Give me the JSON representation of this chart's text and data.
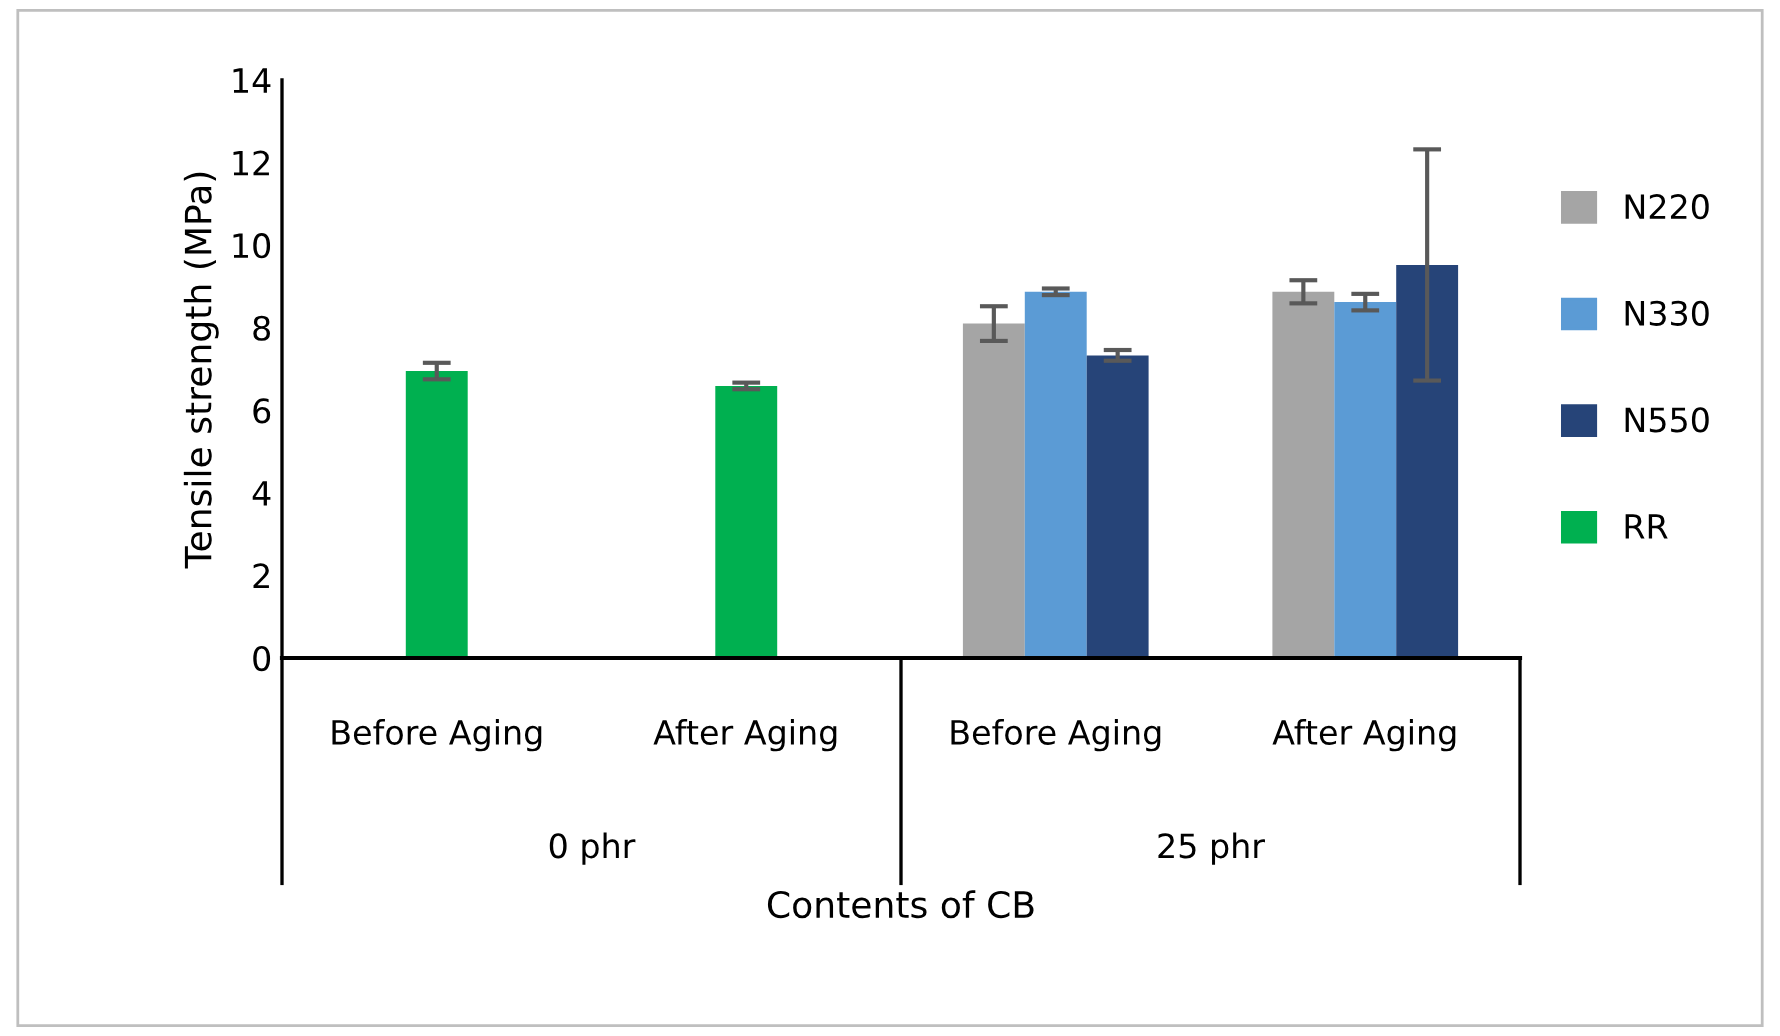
{
  "chart_data": {
    "type": "bar",
    "categories": [
      "Before Aging",
      "After Aging",
      "Before Aging",
      "After Aging"
    ],
    "series": [
      {
        "name": "N220",
        "color": "#a5a5a5",
        "values": [
          null,
          null,
          8.1,
          8.87
        ],
        "errors": [
          null,
          null,
          0.42,
          0.28
        ]
      },
      {
        "name": "N330",
        "color": "#5b9bd5",
        "values": [
          null,
          null,
          8.87,
          8.62
        ],
        "errors": [
          null,
          null,
          0.08,
          0.2
        ]
      },
      {
        "name": "N550",
        "color": "#264478",
        "values": [
          null,
          null,
          7.33,
          9.52
        ],
        "errors": [
          null,
          null,
          0.13,
          2.8
        ]
      },
      {
        "name": "RR",
        "color": "#00b050",
        "values": [
          6.95,
          6.59,
          null,
          null
        ],
        "errors": [
          0.2,
          0.08,
          null,
          null
        ]
      }
    ],
    "annotations": [
      "0 phr",
      "25 phr"
    ],
    "xlabel": "Contents of CB",
    "ylabel": "Tensile strength (MPa)",
    "ylim": [
      0,
      14
    ],
    "yticks": [
      0,
      2,
      4,
      6,
      8,
      10,
      12,
      14
    ],
    "grid": false,
    "legend": "right"
  }
}
